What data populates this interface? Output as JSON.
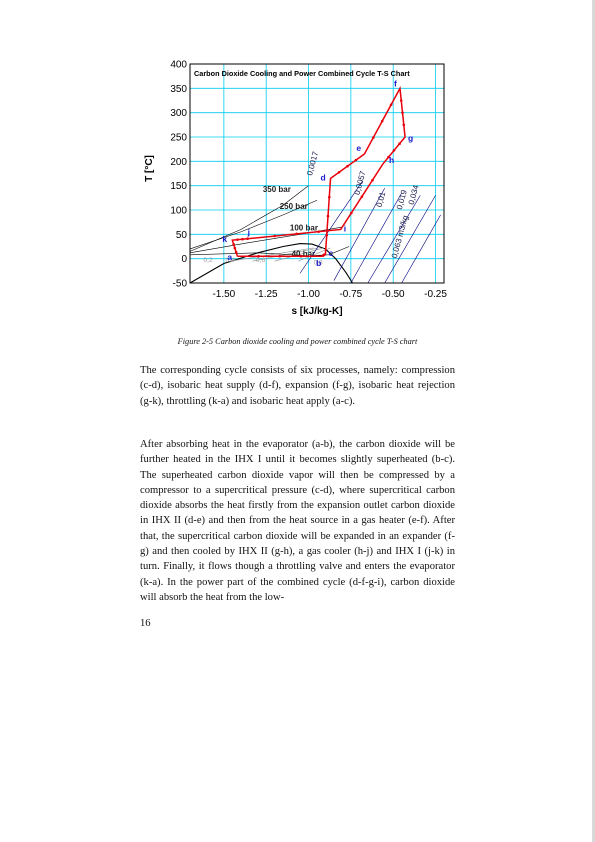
{
  "figure": {
    "caption": "Figure 2-5 Carbon dioxide cooling and power combined cycle T-S chart"
  },
  "chart_data": {
    "type": "line",
    "title": "Carbon Dioxide Cooling and Power Combined Cycle T-S Chart",
    "xlabel": "s [kJ/kg-K]",
    "ylabel": "T [°C]",
    "xlim": [
      -1.7,
      -0.2
    ],
    "ylim": [
      -50,
      400
    ],
    "x_ticks": [
      "-1.50",
      "-1.25",
      "-1.00",
      "-0.75",
      "-0.50",
      "-0.25"
    ],
    "y_ticks": [
      "-50",
      "0",
      "50",
      "100",
      "150",
      "200",
      "250",
      "300",
      "350",
      "400"
    ],
    "grid": true,
    "colors": {
      "grid": "#00ccee",
      "cycle": "#e8000b",
      "state_label": "#1a1acc",
      "isobar": "#000000",
      "isochore": "#000080",
      "quality": "#999999"
    },
    "isobar_labels": [
      "350 bar",
      "250 bar",
      "100 bar",
      "40 bar"
    ],
    "isochore_labels": [
      "0,0017",
      "0,0057",
      "0,01",
      "0,019",
      "0,034",
      "0,063 m3/kg"
    ],
    "quality_labels": [
      "0,2",
      "0,4",
      "0,6",
      "0,8"
    ],
    "state_points": [
      {
        "label": "a",
        "s": -1.42,
        "T": 5
      },
      {
        "label": "b",
        "s": -0.92,
        "T": 5
      },
      {
        "label": "c",
        "s": -0.9,
        "T": 10
      },
      {
        "label": "d",
        "s": -0.87,
        "T": 165
      },
      {
        "label": "e",
        "s": -0.67,
        "T": 215
      },
      {
        "label": "f",
        "s": -0.46,
        "T": 350
      },
      {
        "label": "g",
        "s": -0.43,
        "T": 250
      },
      {
        "label": "h",
        "s": -0.56,
        "T": 195
      },
      {
        "label": "i",
        "s": -0.81,
        "T": 60
      },
      {
        "label": "j",
        "s": -1.33,
        "T": 42
      },
      {
        "label": "k",
        "s": -1.45,
        "T": 38
      }
    ],
    "series": [
      {
        "name": "",
        "points": [
          [
            -1.42,
            5
          ],
          [
            -0.92,
            5
          ],
          [
            -0.9,
            10
          ],
          [
            -0.87,
            165
          ],
          [
            -0.67,
            215
          ],
          [
            -0.46,
            350
          ],
          [
            -0.43,
            250
          ],
          [
            -0.56,
            195
          ],
          [
            -0.81,
            60
          ],
          [
            -1.33,
            42
          ],
          [
            -1.45,
            38
          ],
          [
            -1.42,
            5
          ]
        ]
      }
    ]
  },
  "body": {
    "para1": "The corresponding cycle consists of six processes, namely: compression (c-d), isobaric heat supply (d-f), expansion (f-g), isobaric heat rejection (g-k), throttling (k-a) and isobaric heat apply (a-c).",
    "para2": "After absorbing heat in the evaporator (a-b), the carbon dioxide will be further heated in the IHX I until it becomes slightly superheated (b-c). The superheated carbon dioxide vapor will then be compressed by a compressor to a supercritical pressure (c-d), where supercritical carbon dioxide absorbs the heat firstly from the expansion outlet carbon dioxide in IHX II (d-e) and then from the heat source in a gas heater (e-f). After that, the supercritical carbon dioxide will be expanded in an expander (f-g) and then cooled by IHX II (g-h), a gas cooler (h-j) and IHX I (j-k) in turn. Finally, it flows though a throttling valve and enters the evaporator (k-a). In the power part of the combined cycle (d-f-g-i), carbon dioxide will absorb the heat from the low-",
    "page_number": "16"
  }
}
